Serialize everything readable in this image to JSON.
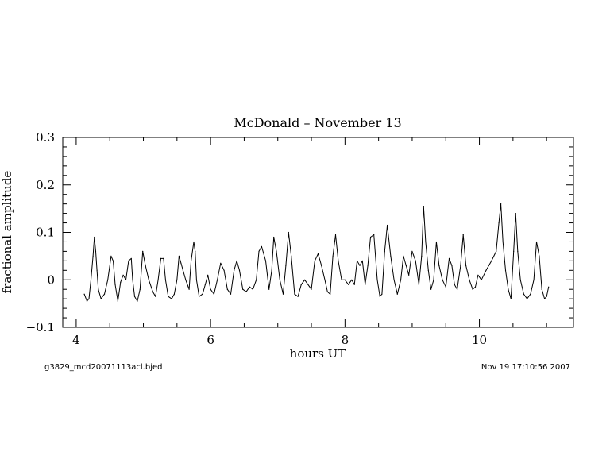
{
  "chart_data": {
    "type": "line",
    "title": "McDonald – November 13",
    "xlabel": "hours UT",
    "ylabel": "fractional amplitude",
    "xlim": [
      3.8,
      11.4
    ],
    "ylim": [
      -0.1,
      0.3
    ],
    "x_ticks": [
      4,
      6,
      8,
      10
    ],
    "x_tick_labels": [
      "4",
      "6",
      "8",
      "10"
    ],
    "y_ticks": [
      -0.1,
      0,
      0.1,
      0.2,
      0.3
    ],
    "y_tick_labels": [
      "−0.1",
      "0",
      "0.1",
      "0.2",
      "0.3"
    ],
    "grid": false,
    "series": [
      {
        "color": "#000000",
        "x": [
          4.12,
          4.16,
          4.19,
          4.22,
          4.25,
          4.27,
          4.29,
          4.31,
          4.33,
          4.37,
          4.42,
          4.47,
          4.52,
          4.55,
          4.58,
          4.62,
          4.66,
          4.7,
          4.74,
          4.78,
          4.82,
          4.84,
          4.87,
          4.91,
          4.95,
          4.99,
          5.03,
          5.08,
          5.14,
          5.18,
          5.22,
          5.26,
          5.3,
          5.33,
          5.37,
          5.42,
          5.46,
          5.5,
          5.53,
          5.56,
          5.59,
          5.63,
          5.68,
          5.71,
          5.75,
          5.77,
          5.79,
          5.83,
          5.88,
          5.92,
          5.96,
          6.0,
          6.05,
          6.1,
          6.15,
          6.2,
          6.25,
          6.3,
          6.35,
          6.39,
          6.43,
          6.48,
          6.53,
          6.58,
          6.63,
          6.68,
          6.72,
          6.76,
          6.82,
          6.87,
          6.91,
          6.94,
          6.98,
          7.03,
          7.08,
          7.12,
          7.16,
          7.2,
          7.25,
          7.3,
          7.35,
          7.4,
          7.45,
          7.5,
          7.55,
          7.6,
          7.65,
          7.7,
          7.74,
          7.78,
          7.82,
          7.86,
          7.9,
          7.95,
          8.0,
          8.05,
          8.1,
          8.14,
          8.18,
          8.22,
          8.26,
          8.3,
          8.34,
          8.38,
          8.43,
          8.48,
          8.52,
          8.55,
          8.59,
          8.63,
          8.68,
          8.73,
          8.78,
          8.83,
          8.87,
          8.91,
          8.95,
          9.0,
          9.05,
          9.1,
          9.14,
          9.17,
          9.2,
          9.24,
          9.28,
          9.32,
          9.36,
          9.4,
          9.45,
          9.5,
          9.55,
          9.59,
          9.63,
          9.67,
          9.72,
          9.76,
          9.8,
          9.85,
          9.9,
          9.94,
          9.98,
          10.03,
          10.1,
          10.18,
          10.25,
          10.29,
          10.32,
          10.35,
          10.39,
          10.43,
          10.47,
          10.51,
          10.54,
          10.57,
          10.61,
          10.66,
          10.71,
          10.76,
          10.81,
          10.85,
          10.89,
          10.93,
          10.97,
          11.0,
          11.03
        ],
        "y": [
          -0.03,
          -0.045,
          -0.04,
          0.0,
          0.05,
          0.09,
          0.06,
          0.02,
          -0.02,
          -0.04,
          -0.03,
          0.0,
          0.05,
          0.04,
          -0.01,
          -0.045,
          -0.005,
          0.01,
          0.0,
          0.04,
          0.045,
          0.0,
          -0.035,
          -0.045,
          -0.02,
          0.06,
          0.03,
          0.0,
          -0.025,
          -0.035,
          0.0,
          0.045,
          0.045,
          0.0,
          -0.035,
          -0.04,
          -0.03,
          0.0,
          0.05,
          0.035,
          0.02,
          0.0,
          -0.02,
          0.04,
          0.08,
          0.06,
          0.0,
          -0.035,
          -0.03,
          -0.01,
          0.01,
          -0.02,
          -0.03,
          0.0,
          0.035,
          0.02,
          -0.02,
          -0.03,
          0.02,
          0.04,
          0.02,
          -0.02,
          -0.025,
          -0.015,
          -0.02,
          0.0,
          0.06,
          0.07,
          0.04,
          -0.02,
          0.02,
          0.09,
          0.06,
          0.0,
          -0.03,
          0.03,
          0.1,
          0.05,
          -0.03,
          -0.035,
          -0.01,
          0.0,
          -0.01,
          -0.02,
          0.04,
          0.055,
          0.03,
          0.0,
          -0.025,
          -0.03,
          0.05,
          0.095,
          0.04,
          0.0,
          0.0,
          -0.01,
          0.0,
          -0.01,
          0.04,
          0.03,
          0.04,
          -0.01,
          0.03,
          0.09,
          0.095,
          0.0,
          -0.035,
          -0.03,
          0.06,
          0.115,
          0.05,
          0.0,
          -0.03,
          0.0,
          0.05,
          0.03,
          0.01,
          0.06,
          0.04,
          -0.01,
          0.05,
          0.155,
          0.08,
          0.02,
          -0.02,
          0.0,
          0.08,
          0.03,
          0.0,
          -0.015,
          0.045,
          0.03,
          -0.01,
          -0.02,
          0.03,
          0.095,
          0.03,
          0.0,
          -0.02,
          -0.015,
          0.01,
          0.0,
          0.02,
          0.04,
          0.06,
          0.12,
          0.16,
          0.08,
          0.02,
          -0.02,
          -0.04,
          0.06,
          0.14,
          0.06,
          0.0,
          -0.03,
          -0.04,
          -0.03,
          0.0,
          0.08,
          0.05,
          -0.02,
          -0.04,
          -0.035,
          -0.015
        ]
      }
    ]
  },
  "footer": {
    "left": "g3829_mcd20071113acl.bjed",
    "right": "Nov 19  17:10:56  2007"
  }
}
